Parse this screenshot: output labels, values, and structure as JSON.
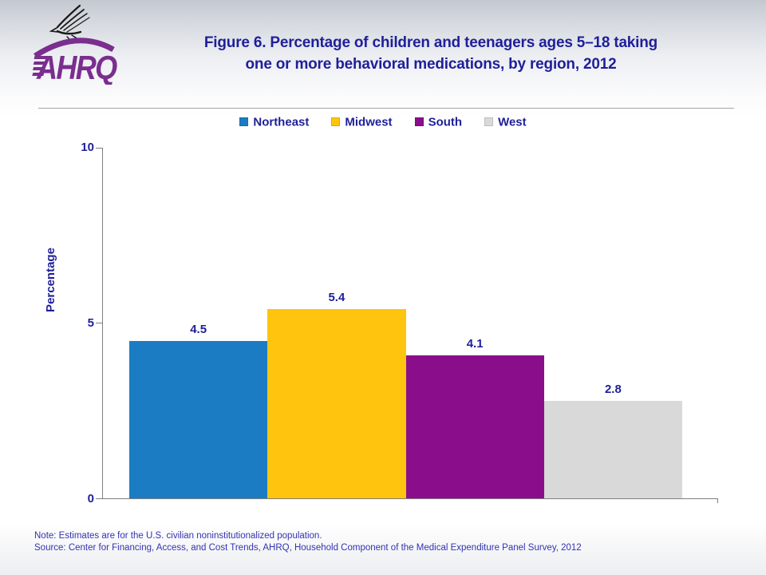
{
  "header": {
    "logo_org": "AHRQ",
    "title_line1": "Figure 6. Percentage of children and teenagers ages 5–18 taking",
    "title_line2": "one or more behavioral medications, by region, 2012"
  },
  "chart_data": {
    "type": "bar",
    "title": "Figure 6. Percentage of children and teenagers ages 5–18 taking one or more behavioral medications, by region, 2012",
    "categories": [
      "Northeast",
      "Midwest",
      "South",
      "West"
    ],
    "values": [
      4.5,
      5.4,
      4.1,
      2.8
    ],
    "value_labels": [
      "4.5",
      "5.4",
      "4.1",
      "2.8"
    ],
    "colors": [
      "#1B7CC4",
      "#FFC40D",
      "#8A0E8C",
      "#D9D9D9"
    ],
    "xlabel": "",
    "ylabel": "Percentage",
    "ylim": [
      0,
      10
    ],
    "yticks": [
      0,
      5,
      10
    ],
    "legend_position": "top",
    "grid": false
  },
  "footer": {
    "note": "Note: Estimates are for the U.S. civilian noninstitutionalized population.",
    "source": "Source: Center for Financing, Access, and Cost Trends, AHRQ, Household Component of the Medical Expenditure Panel Survey, 2012"
  }
}
